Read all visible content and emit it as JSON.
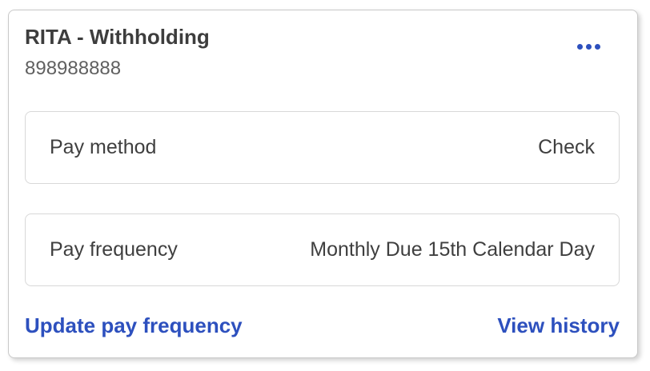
{
  "card": {
    "title": "RITA - Withholding",
    "account_number": "898988888",
    "menu_icon": "ellipsis-icon",
    "rows": [
      {
        "label": "Pay method",
        "value": "Check"
      },
      {
        "label": "Pay frequency",
        "value": "Monthly Due 15th Calendar Day"
      }
    ],
    "links": {
      "update": "Update pay frequency",
      "history": "View history"
    },
    "colors": {
      "accent_blue": "#2d50be",
      "title_text": "#3d3d3d",
      "muted_text": "#606060",
      "row_border": "#d8d8d8",
      "card_border": "#c9c9c9"
    }
  }
}
